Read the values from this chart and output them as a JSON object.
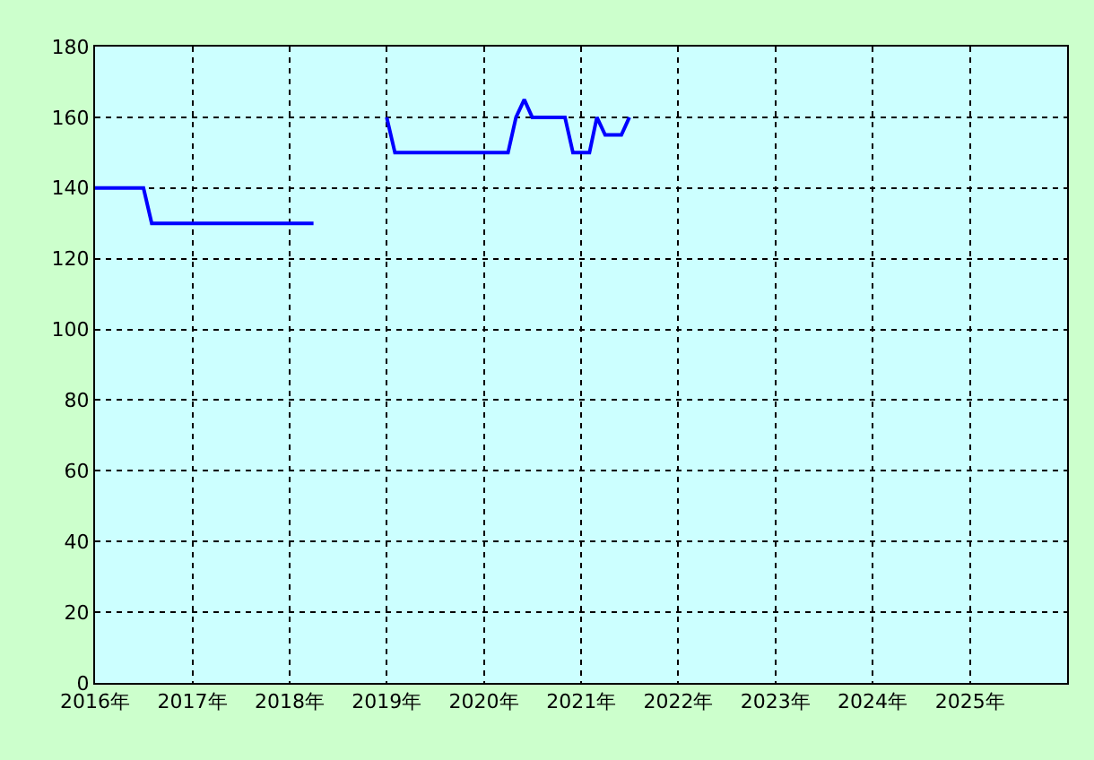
{
  "chart_data": {
    "type": "line",
    "x": [
      "2016-01",
      "2016-07",
      "2016-08",
      "2018-04",
      "2018-05",
      "2019-01",
      "2019-02",
      "2020-04",
      "2020-05",
      "2020-06",
      "2020-07",
      "2020-11",
      "2020-12",
      "2021-02",
      "2021-03",
      "2021-04",
      "2021-06",
      "2021-07"
    ],
    "series": [
      {
        "color": "#0000ff",
        "values": [
          140,
          140,
          130,
          130,
          null,
          160,
          150,
          150,
          160,
          165,
          160,
          160,
          150,
          150,
          160,
          155,
          155,
          160
        ]
      }
    ],
    "xlim": [
      "2016-01",
      "2026-01"
    ],
    "xticks": [
      {
        "value": "2016-01",
        "label": "2016年"
      },
      {
        "value": "2017-01",
        "label": "2017年"
      },
      {
        "value": "2018-01",
        "label": "2018年"
      },
      {
        "value": "2019-01",
        "label": "2019年"
      },
      {
        "value": "2020-01",
        "label": "2020年"
      },
      {
        "value": "2021-01",
        "label": "2021年"
      },
      {
        "value": "2022-01",
        "label": "2022年"
      },
      {
        "value": "2023-01",
        "label": "2023年"
      },
      {
        "value": "2024-01",
        "label": "2024年"
      },
      {
        "value": "2025-01",
        "label": "2025年"
      }
    ],
    "ylim": [
      0,
      180
    ],
    "yticks": [
      0,
      20,
      40,
      60,
      80,
      100,
      120,
      140,
      160,
      180
    ],
    "grid": true,
    "line_style": "solid"
  }
}
